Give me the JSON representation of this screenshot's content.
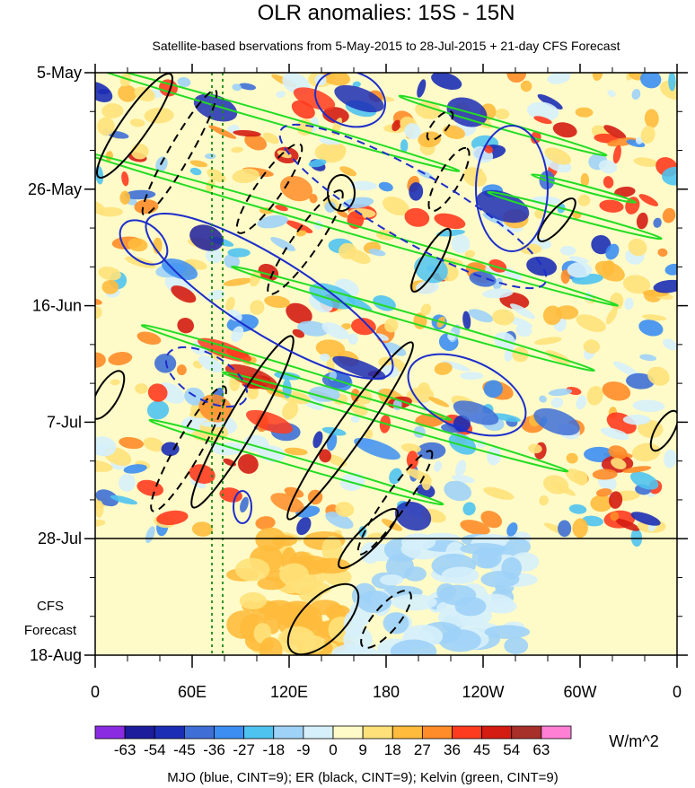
{
  "chart_data": {
    "type": "heatmap",
    "title": "OLR anomalies: 15S - 15N",
    "subtitle": "Satellite-based bservations from 5-May-2015 to 28-Jul-2015 + 21-day CFS Forecast",
    "x_ticks": [
      "0",
      "60E",
      "120E",
      "180",
      "120W",
      "60W",
      "0"
    ],
    "y_ticks": [
      "5-May",
      "26-May",
      "16-Jun",
      "7-Jul",
      "28-Jul",
      "18-Aug"
    ],
    "forecast_label_line1": "CFS",
    "forecast_label_line2": "Forecast",
    "observation_end": "28-Jul",
    "colorbar": {
      "labels": [
        "-63",
        "-54",
        "-45",
        "-36",
        "-27",
        "-18",
        "-9",
        "0",
        "9",
        "18",
        "27",
        "36",
        "45",
        "54",
        "63"
      ],
      "units": "W/m^2",
      "colors": [
        "#8a2be2",
        "#1c1c9c",
        "#1c2db5",
        "#3f6fd6",
        "#3c8ef2",
        "#4fc3f0",
        "#9fd2f7",
        "#d6f0fb",
        "#fffbc8",
        "#ffe17a",
        "#ffbb3c",
        "#ff8c28",
        "#ff3b1f",
        "#d41c12",
        "#a8302a",
        "#ff7fd5"
      ]
    },
    "footer": "MJO (blue, CINT=9); ER (black, CINT=9); Kelvin (green, CINT=9)",
    "contours": {
      "mjo_color": "#1c2dcc",
      "er_color": "#000000",
      "kelvin_color": "#22dd22"
    },
    "grid": false
  }
}
